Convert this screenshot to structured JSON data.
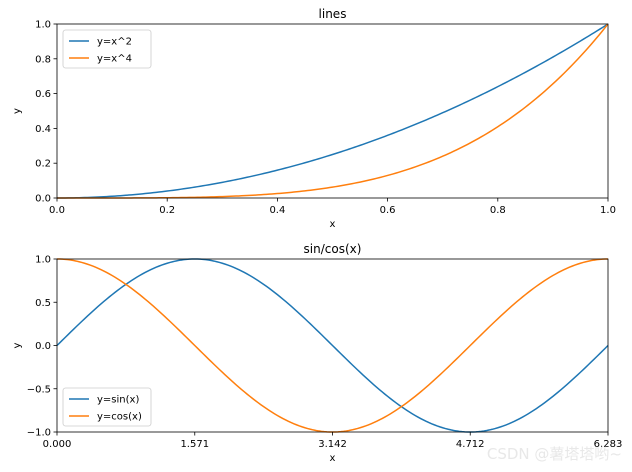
{
  "watermark": "CSDN @薯塔塔哟~",
  "chart_data": [
    {
      "type": "line",
      "title": "lines",
      "xlabel": "x",
      "ylabel": "y",
      "xlim": [
        0,
        1
      ],
      "ylim": [
        0,
        1
      ],
      "xticks": [
        0,
        0.2,
        0.4,
        0.6,
        0.8,
        1.0
      ],
      "xtick_labels": [
        "0.0",
        "0.2",
        "0.4",
        "0.6",
        "0.8",
        "1.0"
      ],
      "yticks": [
        0,
        0.2,
        0.4,
        0.6,
        0.8,
        1.0
      ],
      "ytick_labels": [
        "0.0",
        "0.2",
        "0.4",
        "0.6",
        "0.8",
        "1.0"
      ],
      "legend_position": "upper-left",
      "grid": false,
      "series": [
        {
          "name": "y=x^2",
          "color": "#1f77b4",
          "x": [
            0,
            0.1,
            0.2,
            0.3,
            0.4,
            0.5,
            0.6,
            0.7,
            0.8,
            0.9,
            1.0
          ],
          "y": [
            0,
            0.01,
            0.04,
            0.09,
            0.16,
            0.25,
            0.36,
            0.49,
            0.64,
            0.81,
            1.0
          ]
        },
        {
          "name": "y=x^4",
          "color": "#ff7f0e",
          "x": [
            0,
            0.1,
            0.2,
            0.3,
            0.4,
            0.5,
            0.6,
            0.7,
            0.8,
            0.9,
            1.0
          ],
          "y": [
            0,
            0.0001,
            0.0016,
            0.0081,
            0.0256,
            0.0625,
            0.1296,
            0.2401,
            0.4096,
            0.6561,
            1.0
          ]
        }
      ]
    },
    {
      "type": "line",
      "title": "sin/cos(x)",
      "xlabel": "x",
      "ylabel": "y",
      "xlim": [
        0,
        6.283
      ],
      "ylim": [
        -1,
        1
      ],
      "xticks": [
        0,
        1.571,
        3.142,
        4.712,
        6.283
      ],
      "xtick_labels": [
        "0.000",
        "1.571",
        "3.142",
        "4.712",
        "6.283"
      ],
      "yticks": [
        -1,
        -0.5,
        0,
        0.5,
        1.0
      ],
      "ytick_labels": [
        "−1.0",
        "−0.5",
        "0.0",
        "0.5",
        "1.0"
      ],
      "legend_position": "lower-left",
      "grid": false,
      "series": [
        {
          "name": "y=sin(x)",
          "color": "#1f77b4",
          "x": [
            0,
            0.785,
            1.571,
            2.356,
            3.142,
            3.927,
            4.712,
            5.498,
            6.283
          ],
          "y": [
            0,
            0.707,
            1.0,
            0.707,
            0,
            -0.707,
            -1.0,
            -0.707,
            0
          ]
        },
        {
          "name": "y=cos(x)",
          "color": "#ff7f0e",
          "x": [
            0,
            0.785,
            1.571,
            2.356,
            3.142,
            3.927,
            4.712,
            5.498,
            6.283
          ],
          "y": [
            1.0,
            0.707,
            0,
            -0.707,
            -1.0,
            -0.707,
            0,
            0.707,
            1.0
          ]
        }
      ]
    }
  ]
}
